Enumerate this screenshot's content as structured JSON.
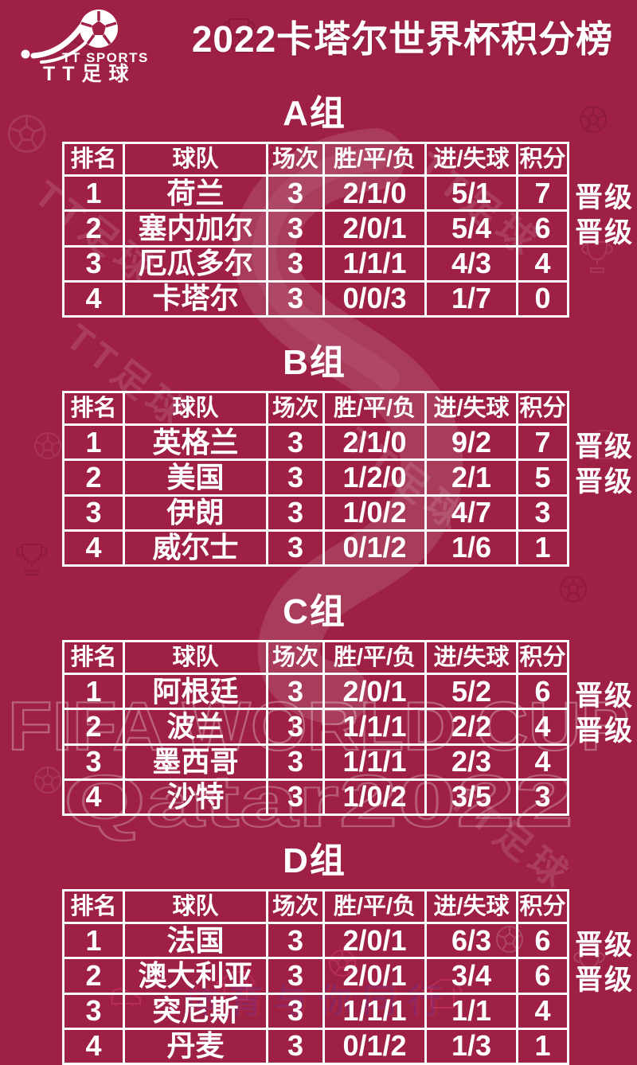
{
  "brand": {
    "line1": "TT SPORTS",
    "line2": "TT足球"
  },
  "title": "2022卡塔尔世界杯积分榜",
  "watermarks": {
    "fifa": "FIFA WORLD CUP",
    "qatar": "Qatar2022",
    "tt": "TT足球",
    "bottom": "体育与你同行"
  },
  "table": {
    "headers": [
      "排名",
      "球队",
      "场次",
      "胜/平/负",
      "进/失球",
      "积分"
    ],
    "promoted_label": "晋级"
  },
  "groups": [
    {
      "name": "A组",
      "rows": [
        {
          "rank": "1",
          "team": "荷兰",
          "played": "3",
          "wdl": "2/1/0",
          "goals": "5/1",
          "points": "7",
          "promoted": true
        },
        {
          "rank": "2",
          "team": "塞内加尔",
          "played": "3",
          "wdl": "2/0/1",
          "goals": "5/4",
          "points": "6",
          "promoted": true
        },
        {
          "rank": "3",
          "team": "厄瓜多尔",
          "played": "3",
          "wdl": "1/1/1",
          "goals": "4/3",
          "points": "4",
          "promoted": false
        },
        {
          "rank": "4",
          "team": "卡塔尔",
          "played": "3",
          "wdl": "0/0/3",
          "goals": "1/7",
          "points": "0",
          "promoted": false
        }
      ]
    },
    {
      "name": "B组",
      "rows": [
        {
          "rank": "1",
          "team": "英格兰",
          "played": "3",
          "wdl": "2/1/0",
          "goals": "9/2",
          "points": "7",
          "promoted": true
        },
        {
          "rank": "2",
          "team": "美国",
          "played": "3",
          "wdl": "1/2/0",
          "goals": "2/1",
          "points": "5",
          "promoted": true
        },
        {
          "rank": "3",
          "team": "伊朗",
          "played": "3",
          "wdl": "1/0/2",
          "goals": "4/7",
          "points": "3",
          "promoted": false
        },
        {
          "rank": "4",
          "team": "威尔士",
          "played": "3",
          "wdl": "0/1/2",
          "goals": "1/6",
          "points": "1",
          "promoted": false
        }
      ]
    },
    {
      "name": "C组",
      "rows": [
        {
          "rank": "1",
          "team": "阿根廷",
          "played": "3",
          "wdl": "2/0/1",
          "goals": "5/2",
          "points": "6",
          "promoted": true
        },
        {
          "rank": "2",
          "team": "波兰",
          "played": "3",
          "wdl": "1/1/1",
          "goals": "2/2",
          "points": "4",
          "promoted": true
        },
        {
          "rank": "3",
          "team": "墨西哥",
          "played": "3",
          "wdl": "1/1/1",
          "goals": "2/3",
          "points": "4",
          "promoted": false
        },
        {
          "rank": "4",
          "team": "沙特",
          "played": "3",
          "wdl": "1/0/2",
          "goals": "3/5",
          "points": "3",
          "promoted": false
        }
      ]
    },
    {
      "name": "D组",
      "rows": [
        {
          "rank": "1",
          "team": "法国",
          "played": "3",
          "wdl": "2/0/1",
          "goals": "6/3",
          "points": "6",
          "promoted": true
        },
        {
          "rank": "2",
          "team": "澳大利亚",
          "played": "3",
          "wdl": "2/0/1",
          "goals": "3/4",
          "points": "6",
          "promoted": true
        },
        {
          "rank": "3",
          "team": "突尼斯",
          "played": "3",
          "wdl": "1/1/1",
          "goals": "1/1",
          "points": "4",
          "promoted": false
        },
        {
          "rank": "4",
          "team": "丹麦",
          "played": "3",
          "wdl": "0/1/2",
          "goals": "1/3",
          "points": "1",
          "promoted": false
        }
      ]
    }
  ],
  "colors": {
    "background": "#9e2045",
    "grid_border": "#ffffff",
    "text": "#ffffff"
  }
}
